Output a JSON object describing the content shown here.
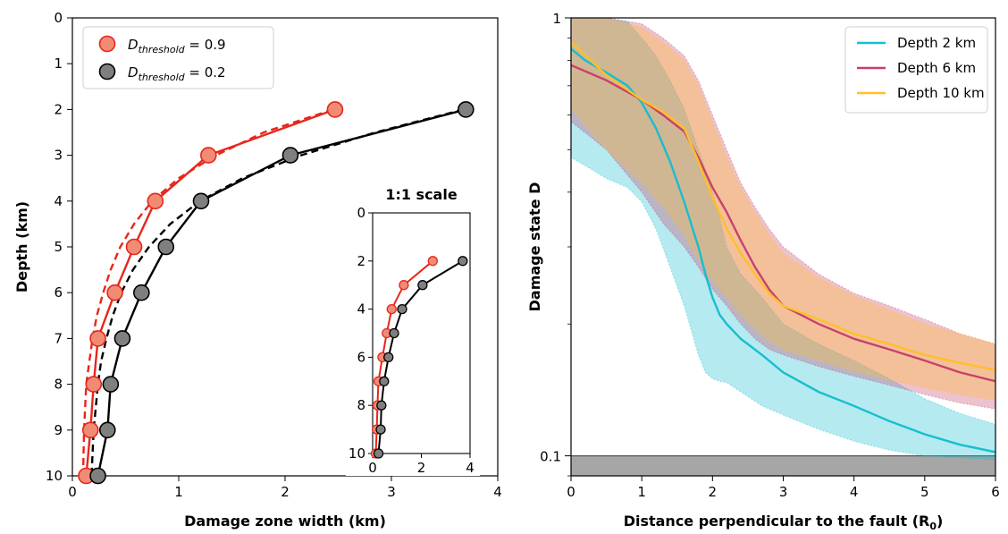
{
  "chart_data": [
    {
      "type": "line",
      "xlabel": "Damage zone width (km)",
      "ylabel": "Depth (km)",
      "xlim": [
        0,
        4
      ],
      "ylim": [
        10,
        0
      ],
      "xticks": [
        "0",
        "1",
        "2",
        "3",
        "4"
      ],
      "yticks": [
        "0",
        "1",
        "2",
        "3",
        "4",
        "5",
        "6",
        "7",
        "8",
        "9",
        "10"
      ],
      "legend_position": "top-left",
      "series": [
        {
          "name_main": "D",
          "name_sub": "threshold",
          "name_tail": " = 0.9",
          "color": "#e8261c",
          "marker_fill": "#f08c74",
          "style": "solid-markers",
          "x": [
            2.47,
            1.28,
            0.78,
            0.58,
            0.4,
            0.24,
            0.2,
            0.17,
            0.13
          ],
          "y": [
            2,
            3,
            4,
            5,
            6,
            7,
            8,
            9,
            10
          ]
        },
        {
          "name_main": "D",
          "name_sub": "threshold",
          "name_tail": " = 0.2",
          "color": "#000000",
          "marker_fill": "#7f7f7f",
          "style": "solid-markers",
          "x": [
            3.7,
            2.05,
            1.21,
            0.88,
            0.65,
            0.47,
            0.36,
            0.33,
            0.24
          ],
          "y": [
            2,
            3,
            4,
            5,
            6,
            7,
            8,
            9,
            10
          ]
        },
        {
          "color": "#e8261c",
          "style": "dashed",
          "x": [
            2.45,
            1.8,
            1.35,
            1.0,
            0.75,
            0.58,
            0.45,
            0.36,
            0.29,
            0.23,
            0.19,
            0.16,
            0.13,
            0.11,
            0.1
          ],
          "y": [
            2,
            2.5,
            3,
            3.5,
            4,
            4.5,
            5,
            5.5,
            6,
            6.5,
            7,
            7.5,
            8,
            9,
            10
          ]
        },
        {
          "color": "#000000",
          "style": "dashed",
          "x": [
            3.68,
            2.85,
            2.15,
            1.6,
            1.2,
            0.92,
            0.72,
            0.57,
            0.46,
            0.38,
            0.32,
            0.27,
            0.24,
            0.2,
            0.18
          ],
          "y": [
            2,
            2.5,
            3,
            3.5,
            4,
            4.5,
            5,
            5.5,
            6,
            6.5,
            7,
            7.5,
            8,
            9,
            10
          ]
        }
      ],
      "inset": {
        "title": "1:1 scale",
        "xlim": [
          0,
          4
        ],
        "ylim": [
          10,
          0
        ],
        "xticks": [
          "0",
          "2",
          "4"
        ],
        "yticks": [
          "0",
          "2",
          "4",
          "6",
          "8",
          "10"
        ]
      }
    },
    {
      "type": "line",
      "xlabel": "Distance perpendicular to the fault (R",
      "xlabel_sub": "0",
      "xlabel_tail": ")",
      "ylabel": "Damage state D",
      "xlim": [
        0,
        6
      ],
      "ylim": [
        0.09,
        1
      ],
      "yscale": "log",
      "xticks": [
        "0",
        "1",
        "2",
        "3",
        "4",
        "5",
        "6"
      ],
      "yticks": [
        "0.1",
        "1"
      ],
      "legend_position": "top-right",
      "shaded_floor": [
        0.09,
        0.1
      ],
      "series": [
        {
          "name": "Depth 2 km",
          "color": "#17becf",
          "x": [
            0,
            0.2,
            0.5,
            0.8,
            1.0,
            1.2,
            1.4,
            1.6,
            1.8,
            1.9,
            2.0,
            2.1,
            2.2,
            2.4,
            2.7,
            3.0,
            3.5,
            4.0,
            4.5,
            5.0,
            5.5,
            6.0
          ],
          "y": [
            0.85,
            0.8,
            0.75,
            0.7,
            0.64,
            0.56,
            0.47,
            0.38,
            0.3,
            0.26,
            0.23,
            0.21,
            0.2,
            0.185,
            0.17,
            0.155,
            0.14,
            0.13,
            0.12,
            0.112,
            0.106,
            0.102
          ],
          "lower": [
            0.48,
            0.46,
            0.43,
            0.41,
            0.38,
            0.33,
            0.27,
            0.22,
            0.17,
            0.155,
            0.15,
            0.148,
            0.147,
            0.14,
            0.13,
            0.124,
            0.115,
            0.108,
            0.103,
            0.1,
            0.099,
            0.098
          ],
          "upper": [
            1,
            1,
            1,
            0.98,
            0.9,
            0.82,
            0.72,
            0.62,
            0.5,
            0.45,
            0.4,
            0.35,
            0.3,
            0.26,
            0.23,
            0.2,
            0.18,
            0.165,
            0.15,
            0.135,
            0.125,
            0.118
          ]
        },
        {
          "name": "Depth 6 km",
          "color": "#c8416b",
          "x": [
            0,
            0.5,
            1.0,
            1.3,
            1.6,
            1.8,
            2.0,
            2.2,
            2.4,
            2.6,
            2.8,
            3.0,
            3.5,
            4.0,
            4.5,
            5.0,
            5.5,
            6.0
          ],
          "y": [
            0.78,
            0.72,
            0.65,
            0.6,
            0.55,
            0.48,
            0.41,
            0.36,
            0.31,
            0.27,
            0.24,
            0.22,
            0.2,
            0.185,
            0.175,
            0.165,
            0.155,
            0.148
          ],
          "lower": [
            0.58,
            0.5,
            0.4,
            0.34,
            0.3,
            0.27,
            0.24,
            0.22,
            0.2,
            0.185,
            0.175,
            0.17,
            0.16,
            0.152,
            0.145,
            0.138,
            0.132,
            0.128
          ],
          "upper": [
            1,
            1,
            0.97,
            0.9,
            0.82,
            0.72,
            0.6,
            0.5,
            0.42,
            0.37,
            0.33,
            0.3,
            0.26,
            0.235,
            0.22,
            0.205,
            0.19,
            0.18
          ]
        },
        {
          "name": "Depth 10 km",
          "color": "#ffbf2a",
          "x": [
            0,
            0.5,
            1.0,
            1.3,
            1.6,
            1.8,
            2.0,
            2.2,
            2.4,
            2.6,
            2.8,
            3.0,
            3.5,
            4.0,
            4.5,
            5.0,
            5.5,
            6.0
          ],
          "y": [
            0.88,
            0.74,
            0.65,
            0.61,
            0.56,
            0.47,
            0.39,
            0.33,
            0.29,
            0.26,
            0.235,
            0.22,
            0.205,
            0.19,
            0.18,
            0.17,
            0.163,
            0.157
          ],
          "lower": [
            0.62,
            0.5,
            0.42,
            0.37,
            0.32,
            0.28,
            0.25,
            0.23,
            0.21,
            0.195,
            0.183,
            0.175,
            0.165,
            0.156,
            0.149,
            0.143,
            0.138,
            0.134
          ],
          "upper": [
            1,
            1,
            0.95,
            0.88,
            0.8,
            0.7,
            0.58,
            0.48,
            0.41,
            0.36,
            0.32,
            0.29,
            0.255,
            0.232,
            0.215,
            0.2,
            0.19,
            0.18
          ]
        }
      ]
    }
  ]
}
